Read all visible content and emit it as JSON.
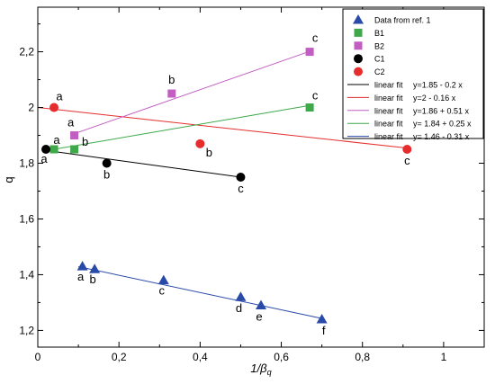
{
  "chart_data": {
    "type": "scatter",
    "xlabel": "1/β",
    "xlabel_sub": "q",
    "ylabel": "q",
    "xlim": [
      0,
      1.1
    ],
    "ylim": [
      1.14,
      2.36
    ],
    "x_ticks": [
      0,
      0.2,
      0.4,
      0.6,
      0.8,
      1
    ],
    "x_tick_labels": [
      "0",
      "0,2",
      "0,4",
      "0,6",
      "0,8",
      "1"
    ],
    "y_ticks": [
      1.2,
      1.4,
      1.6,
      1.8,
      2.0,
      2.2
    ],
    "y_tick_labels": [
      "1,2",
      "1,4",
      "1,6",
      "1,8",
      "2",
      "2,2"
    ],
    "legend_position": "top-right",
    "series": [
      {
        "name": "Data from ref. 1",
        "marker": "triangle",
        "color": "#2a4aa8",
        "points": [
          {
            "x": 0.11,
            "y": 1.43,
            "label": "a"
          },
          {
            "x": 0.14,
            "y": 1.42,
            "label": "b"
          },
          {
            "x": 0.31,
            "y": 1.38,
            "label": "c"
          },
          {
            "x": 0.5,
            "y": 1.32,
            "label": "d"
          },
          {
            "x": 0.55,
            "y": 1.29,
            "label": "e"
          },
          {
            "x": 0.7,
            "y": 1.24,
            "label": "f"
          }
        ]
      },
      {
        "name": "B1",
        "marker": "square",
        "color": "#3ea84a",
        "points": [
          {
            "x": 0.04,
            "y": 1.85,
            "label": "a"
          },
          {
            "x": 0.09,
            "y": 1.85,
            "label": "b"
          },
          {
            "x": 0.67,
            "y": 2.0,
            "label": "c"
          }
        ]
      },
      {
        "name": "B2",
        "marker": "square",
        "color": "#c25ec2",
        "points": [
          {
            "x": 0.09,
            "y": 1.9,
            "label": "a"
          },
          {
            "x": 0.33,
            "y": 2.05,
            "label": "b"
          },
          {
            "x": 0.67,
            "y": 2.2,
            "label": "c"
          }
        ]
      },
      {
        "name": "C1",
        "marker": "circle",
        "color": "#000000",
        "points": [
          {
            "x": 0.02,
            "y": 1.85,
            "label": "a"
          },
          {
            "x": 0.17,
            "y": 1.8,
            "label": "b"
          },
          {
            "x": 0.5,
            "y": 1.75,
            "label": "c"
          }
        ]
      },
      {
        "name": "C2",
        "marker": "circle",
        "color": "#e52d2d",
        "points": [
          {
            "x": 0.04,
            "y": 2.0,
            "label": "a"
          },
          {
            "x": 0.4,
            "y": 1.87,
            "label": "b"
          },
          {
            "x": 0.91,
            "y": 1.85,
            "label": "c"
          }
        ]
      }
    ],
    "fits": [
      {
        "name": "linear fit",
        "equation": "y=1.85 - 0.2 x",
        "color": "#000000",
        "intercept": 1.85,
        "slope": -0.2,
        "x_range": [
          0.02,
          0.5
        ]
      },
      {
        "name": "linear fit",
        "equation": "y=2 - 0.16 x",
        "color": "#e52d2d",
        "intercept": 2.0,
        "slope": -0.16,
        "x_range": [
          0.0,
          0.91
        ]
      },
      {
        "name": "linear fit",
        "equation": "y=1.86 + 0.51 x",
        "color": "#c25ec2",
        "intercept": 1.86,
        "slope": 0.51,
        "x_range": [
          0.09,
          0.67
        ]
      },
      {
        "name": "linear fit",
        "equation": "y= 1.84  + 0.25 x",
        "color": "#3ea84a",
        "intercept": 1.84,
        "slope": 0.25,
        "x_range": [
          0.04,
          0.67
        ]
      },
      {
        "name": "linear fit",
        "equation": "y= 1.46 - 0.31 x",
        "color": "#2a4aa8",
        "intercept": 1.46,
        "slope": -0.31,
        "x_range": [
          0.1,
          0.7
        ]
      }
    ]
  }
}
